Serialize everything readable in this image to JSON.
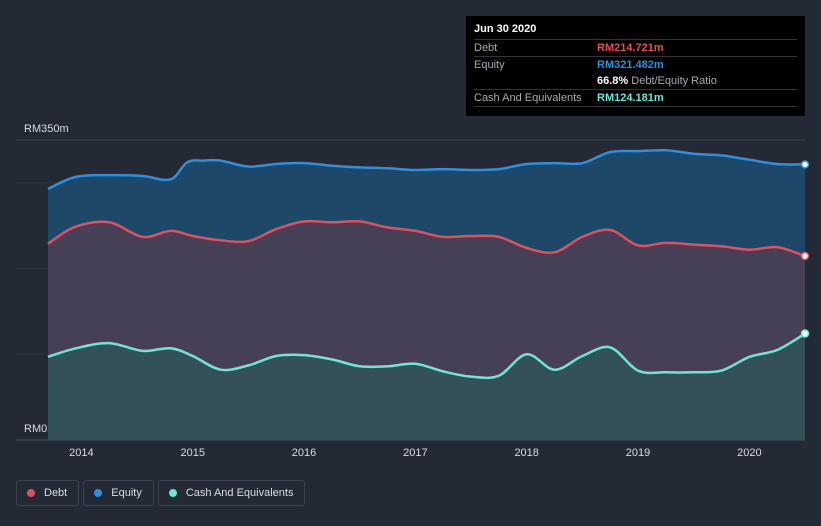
{
  "colors": {
    "debt": "#e0505e",
    "equity": "#2d8fde",
    "cash": "#6ee6d6",
    "grid": "#3a414d",
    "background": "#232a35"
  },
  "tooltip": {
    "date": "Jun 30 2020",
    "debt_label": "Debt",
    "debt_value": "RM214.721m",
    "equity_label": "Equity",
    "equity_value": "RM321.482m",
    "ratio_value": "66.8%",
    "ratio_label": "Debt/Equity Ratio",
    "cash_label": "Cash And Equivalents",
    "cash_value": "RM124.181m"
  },
  "legend": [
    {
      "name": "Debt",
      "color": "#e0505e"
    },
    {
      "name": "Equity",
      "color": "#2d8fde"
    },
    {
      "name": "Cash And Equivalents",
      "color": "#6ee6d6"
    }
  ],
  "chart_data": {
    "type": "area",
    "title": "",
    "xlabel": "",
    "ylabel": "",
    "y_top_label": "RM350m",
    "y_bottom_label": "RM0",
    "ylim": [
      0,
      350
    ],
    "xlim": [
      2013.7,
      2020.5
    ],
    "x_ticks": [
      2014,
      2015,
      2016,
      2017,
      2018,
      2019,
      2020
    ],
    "x_tick_labels": [
      "2014",
      "2015",
      "2016",
      "2017",
      "2018",
      "2019",
      "2020"
    ],
    "grid": true,
    "legend_position": "bottom-left",
    "series": [
      {
        "name": "Equity",
        "color": "#2d8fde",
        "points": [
          [
            2013.7,
            293
          ],
          [
            2013.95,
            307
          ],
          [
            2014.25,
            309
          ],
          [
            2014.55,
            308
          ],
          [
            2014.8,
            304
          ],
          [
            2014.95,
            324
          ],
          [
            2015.1,
            326
          ],
          [
            2015.25,
            326
          ],
          [
            2015.5,
            319
          ],
          [
            2015.75,
            322
          ],
          [
            2016.0,
            323
          ],
          [
            2016.25,
            320
          ],
          [
            2016.5,
            318
          ],
          [
            2016.75,
            317
          ],
          [
            2017.0,
            315
          ],
          [
            2017.25,
            316
          ],
          [
            2017.5,
            315
          ],
          [
            2017.75,
            316
          ],
          [
            2018.0,
            322
          ],
          [
            2018.25,
            323
          ],
          [
            2018.5,
            323
          ],
          [
            2018.75,
            336
          ],
          [
            2019.0,
            337
          ],
          [
            2019.25,
            338
          ],
          [
            2019.5,
            334
          ],
          [
            2019.75,
            332
          ],
          [
            2020.0,
            327
          ],
          [
            2020.25,
            322
          ],
          [
            2020.5,
            321.482
          ]
        ]
      },
      {
        "name": "Debt",
        "color": "#e0505e",
        "points": [
          [
            2013.7,
            229
          ],
          [
            2013.95,
            249
          ],
          [
            2014.25,
            254
          ],
          [
            2014.55,
            237
          ],
          [
            2014.8,
            244
          ],
          [
            2015.0,
            238
          ],
          [
            2015.25,
            233
          ],
          [
            2015.5,
            232
          ],
          [
            2015.75,
            246
          ],
          [
            2016.0,
            255
          ],
          [
            2016.25,
            254
          ],
          [
            2016.5,
            255
          ],
          [
            2016.75,
            248
          ],
          [
            2017.0,
            244
          ],
          [
            2017.25,
            237
          ],
          [
            2017.5,
            238
          ],
          [
            2017.75,
            237
          ],
          [
            2018.0,
            224
          ],
          [
            2018.25,
            219
          ],
          [
            2018.5,
            237
          ],
          [
            2018.75,
            245
          ],
          [
            2019.0,
            227
          ],
          [
            2019.25,
            230
          ],
          [
            2019.5,
            228
          ],
          [
            2019.75,
            226
          ],
          [
            2020.0,
            222
          ],
          [
            2020.25,
            225
          ],
          [
            2020.5,
            214.721
          ]
        ]
      },
      {
        "name": "Cash And Equivalents",
        "color": "#6ee6d6",
        "points": [
          [
            2013.7,
            97
          ],
          [
            2013.95,
            107
          ],
          [
            2014.25,
            113
          ],
          [
            2014.55,
            104
          ],
          [
            2014.8,
            107
          ],
          [
            2015.0,
            98
          ],
          [
            2015.25,
            82
          ],
          [
            2015.5,
            87
          ],
          [
            2015.75,
            98
          ],
          [
            2016.0,
            99
          ],
          [
            2016.25,
            94
          ],
          [
            2016.5,
            86
          ],
          [
            2016.75,
            86
          ],
          [
            2017.0,
            89
          ],
          [
            2017.25,
            80
          ],
          [
            2017.5,
            74
          ],
          [
            2017.75,
            75
          ],
          [
            2018.0,
            100
          ],
          [
            2018.25,
            82
          ],
          [
            2018.5,
            98
          ],
          [
            2018.75,
            108
          ],
          [
            2019.0,
            81
          ],
          [
            2019.25,
            79
          ],
          [
            2019.5,
            79
          ],
          [
            2019.75,
            81
          ],
          [
            2020.0,
            97
          ],
          [
            2020.25,
            105
          ],
          [
            2020.5,
            124.181
          ]
        ]
      }
    ]
  }
}
